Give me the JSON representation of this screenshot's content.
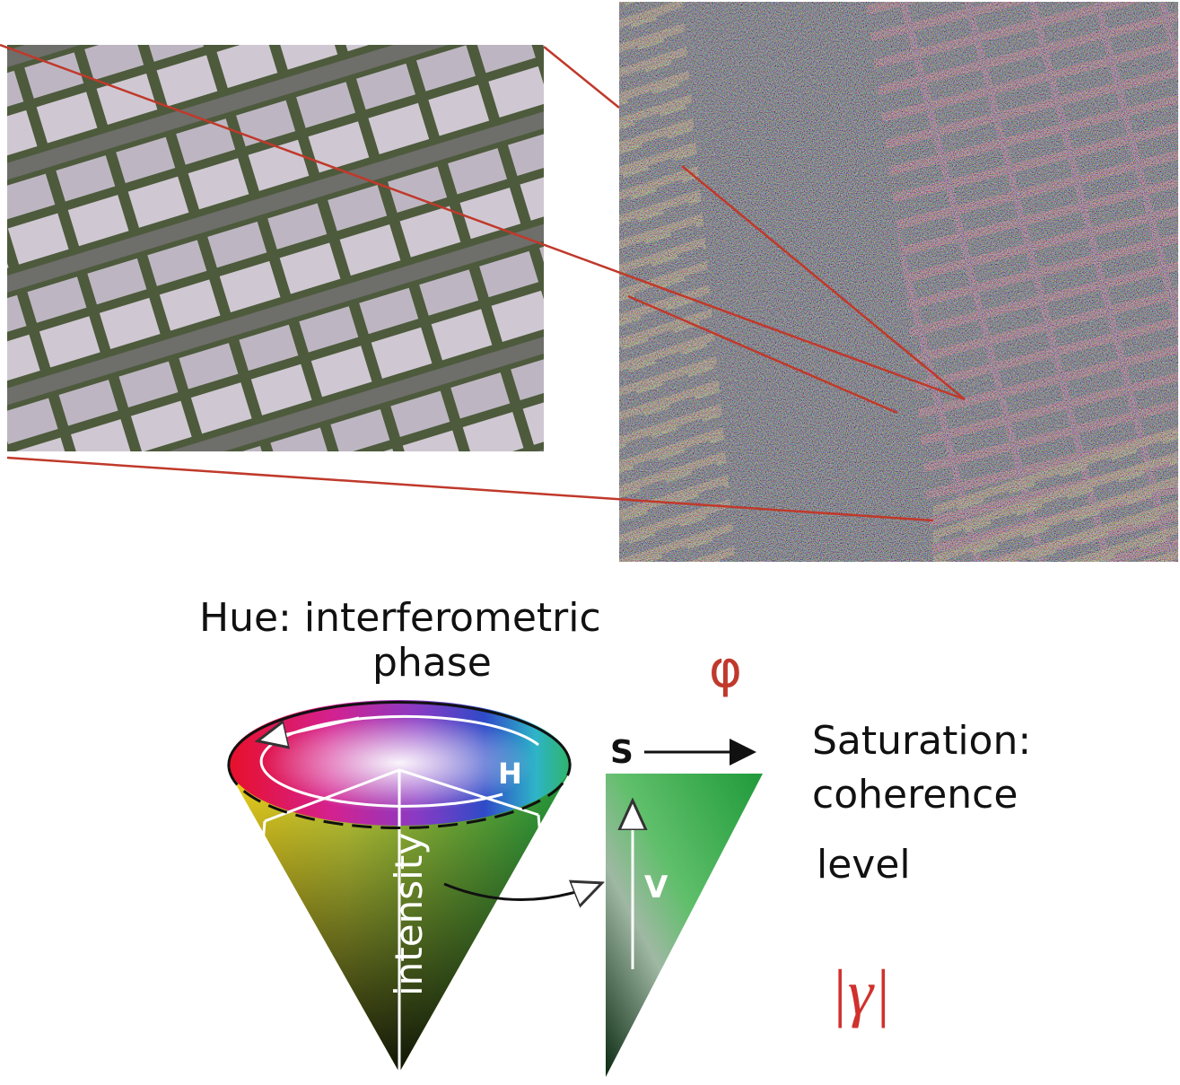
{
  "hue_title": [
    "Hue: interferometric",
    "phase"
  ],
  "phi": "φ",
  "saturation": [
    "Saturation:",
    "coherence",
    "level"
  ],
  "gamma": "|γ|",
  "cone": {
    "h": "H",
    "intensity": "intensity"
  },
  "triangle": {
    "s": "S",
    "v": "V"
  }
}
